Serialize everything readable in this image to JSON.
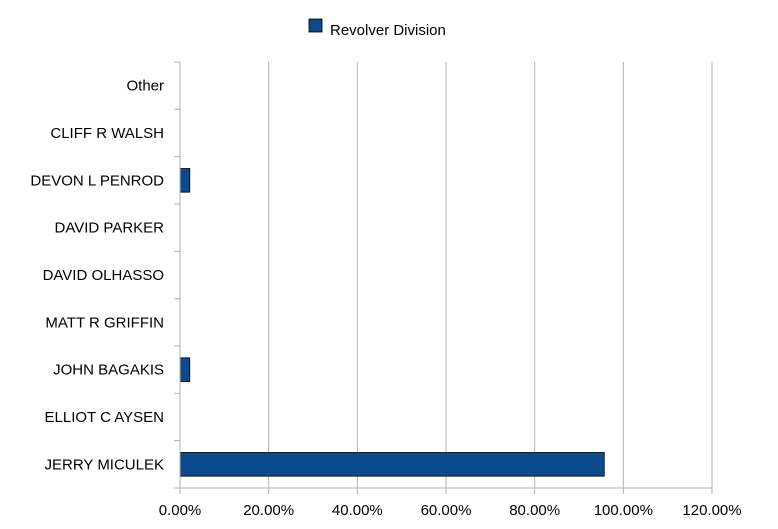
{
  "chart_data": {
    "type": "bar",
    "orientation": "horizontal",
    "categories": [
      "JERRY MICULEK",
      "ELLIOT C AYSEN",
      "JOHN BAGAKIS",
      "MATT R GRIFFIN",
      "DAVID OLHASSO",
      "DAVID PARKER",
      "DEVON L PENROD",
      "CLIFF R WALSH",
      "Other"
    ],
    "series": [
      {
        "name": "Revolver Division",
        "values": [
          0.957,
          0.0,
          0.022,
          0.0,
          0.0,
          0.0,
          0.022,
          0.0,
          0.0
        ],
        "color": "#0b4a8b"
      }
    ],
    "xlim": [
      0,
      1.2
    ],
    "x_ticks": [
      0,
      0.2,
      0.4,
      0.6,
      0.8,
      1.0,
      1.2
    ],
    "x_tick_labels": [
      "0.00%",
      "20.00%",
      "40.00%",
      "60.00%",
      "80.00%",
      "100.00%",
      "120.00%"
    ],
    "grid": true,
    "legend_position": "top"
  }
}
